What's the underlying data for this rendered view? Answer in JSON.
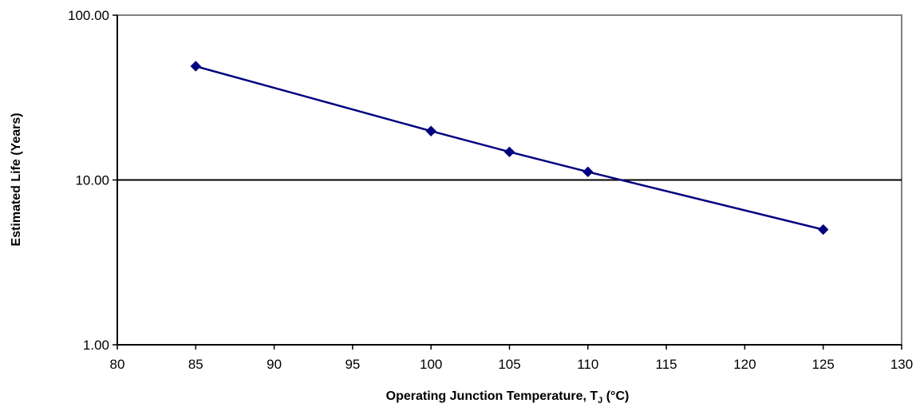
{
  "chart_data": {
    "type": "line",
    "title": "",
    "xlabel": "Operating Junction Temperature, TJ (°C)",
    "xlabel_parts": {
      "pre": "Operating Junction Temperature, T",
      "sub": "J",
      "post": " (°C)"
    },
    "ylabel": "Estimated Life (Years)",
    "xlim": [
      80,
      130
    ],
    "ylim": [
      1,
      100
    ],
    "yscale": "log",
    "x_ticks": [
      "80",
      "85",
      "90",
      "95",
      "100",
      "105",
      "110",
      "115",
      "120",
      "125",
      "130"
    ],
    "x_tick_values": [
      80,
      85,
      90,
      95,
      100,
      105,
      110,
      115,
      120,
      125,
      130
    ],
    "y_ticks": [
      "1.00",
      "10.00",
      "100.00"
    ],
    "y_tick_values": [
      1,
      10,
      100
    ],
    "grid": "horizontal major gridlines",
    "legend": "none",
    "marker": "diamond",
    "series": [
      {
        "x": [
          85,
          100,
          105,
          110,
          125
        ],
        "y": [
          49,
          19.8,
          14.8,
          11.2,
          5.0
        ]
      }
    ],
    "colors": {
      "series": "#000080",
      "axis": "#000000",
      "frame": "#808080",
      "background": "#ffffff"
    }
  }
}
